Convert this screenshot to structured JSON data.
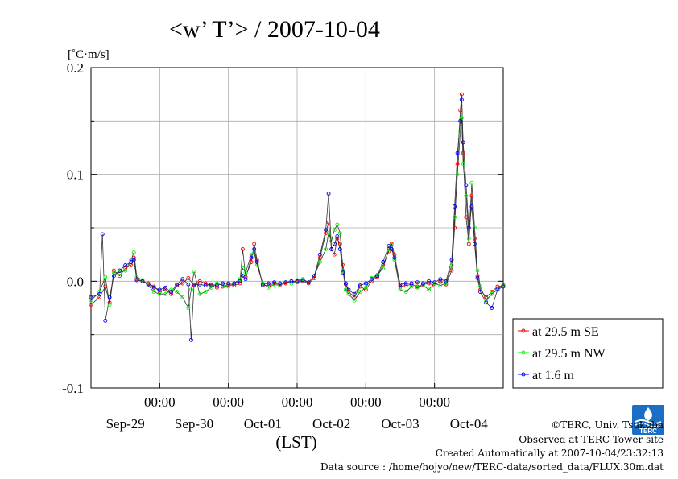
{
  "title": "<w’ T’> / 2007-10-04",
  "chart_data": {
    "type": "line",
    "title": "<w’ T’> / 2007-10-04",
    "ylabel": "[˚C·m/s]",
    "xlabel": "(LST)",
    "ylim": [
      -0.1,
      0.2
    ],
    "yticks": [
      -0.1,
      0.0,
      0.1,
      0.2
    ],
    "ytick_labels": [
      "-0.1",
      "0.0",
      "0.1",
      "0.2"
    ],
    "xlim_hours": [
      -12,
      132
    ],
    "xticks_hours": [
      12,
      36,
      60,
      84,
      108
    ],
    "xtick_labels": [
      "00:00",
      "00:00",
      "00:00",
      "00:00",
      "00:00"
    ],
    "day_labels": [
      {
        "label": "Sep-29",
        "center_hours": 0
      },
      {
        "label": "Sep-30",
        "center_hours": 24
      },
      {
        "label": "Oct-01",
        "center_hours": 48
      },
      {
        "label": "Oct-02",
        "center_hours": 72
      },
      {
        "label": "Oct-03",
        "center_hours": 96
      },
      {
        "label": "Oct-04",
        "center_hours": 120
      }
    ],
    "grid": true,
    "legend_position": "right",
    "series": [
      {
        "name": "at 29.5 m SE",
        "color": "#ff0000",
        "points": [
          [
            -12,
            -0.022
          ],
          [
            -9,
            -0.015
          ],
          [
            -7,
            -0.005
          ],
          [
            -5.5,
            -0.02
          ],
          [
            -4,
            0.01
          ],
          [
            -2,
            0.005
          ],
          [
            0,
            0.012
          ],
          [
            2,
            0.015
          ],
          [
            3,
            0.022
          ],
          [
            4,
            0.002
          ],
          [
            6,
            0.0
          ],
          [
            8,
            -0.002
          ],
          [
            10,
            -0.005
          ],
          [
            12,
            -0.01
          ],
          [
            14,
            -0.008
          ],
          [
            16,
            -0.012
          ],
          [
            18,
            -0.004
          ],
          [
            20,
            -0.002
          ],
          [
            22,
            0.003
          ],
          [
            24,
            -0.004
          ],
          [
            26,
            0.0
          ],
          [
            28,
            -0.002
          ],
          [
            30,
            -0.004
          ],
          [
            32,
            -0.006
          ],
          [
            34,
            -0.005
          ],
          [
            36,
            -0.003
          ],
          [
            38,
            -0.004
          ],
          [
            40,
            -0.002
          ],
          [
            41,
            0.03
          ],
          [
            42,
            0.004
          ],
          [
            44,
            0.018
          ],
          [
            45,
            0.035
          ],
          [
            46,
            0.02
          ],
          [
            48,
            -0.004
          ],
          [
            50,
            -0.004
          ],
          [
            52,
            -0.002
          ],
          [
            54,
            -0.003
          ],
          [
            56,
            -0.002
          ],
          [
            58,
            0.0
          ],
          [
            60,
            -0.001
          ],
          [
            62,
            0.0
          ],
          [
            64,
            -0.002
          ],
          [
            66,
            0.003
          ],
          [
            68,
            0.022
          ],
          [
            70,
            0.045
          ],
          [
            71,
            0.055
          ],
          [
            72,
            0.03
          ],
          [
            73,
            0.025
          ],
          [
            74,
            0.04
          ],
          [
            75,
            0.035
          ],
          [
            76,
            0.015
          ],
          [
            77,
            -0.003
          ],
          [
            78,
            -0.01
          ],
          [
            80,
            -0.015
          ],
          [
            82,
            -0.005
          ],
          [
            84,
            -0.008
          ],
          [
            86,
            0.0
          ],
          [
            88,
            0.004
          ],
          [
            90,
            0.015
          ],
          [
            92,
            0.028
          ],
          [
            93,
            0.035
          ],
          [
            94,
            0.025
          ],
          [
            96,
            -0.005
          ],
          [
            98,
            -0.004
          ],
          [
            100,
            -0.003
          ],
          [
            102,
            -0.005
          ],
          [
            104,
            -0.003
          ],
          [
            106,
            -0.002
          ],
          [
            108,
            -0.004
          ],
          [
            110,
            0.0
          ],
          [
            112,
            -0.003
          ],
          [
            114,
            0.01
          ],
          [
            115,
            0.05
          ],
          [
            116,
            0.11
          ],
          [
            117,
            0.16
          ],
          [
            117.5,
            0.175
          ],
          [
            118,
            0.12
          ],
          [
            119,
            0.06
          ],
          [
            120,
            0.035
          ],
          [
            121,
            0.08
          ],
          [
            122,
            0.04
          ],
          [
            123,
            0.005
          ],
          [
            124,
            -0.008
          ],
          [
            126,
            -0.015
          ],
          [
            128,
            -0.01
          ],
          [
            130,
            -0.005
          ],
          [
            132,
            -0.004
          ]
        ]
      },
      {
        "name": "at 29.5 m NW",
        "color": "#00ff00",
        "points": [
          [
            -12,
            -0.018
          ],
          [
            -9,
            -0.01
          ],
          [
            -7,
            0.004
          ],
          [
            -5.5,
            -0.022
          ],
          [
            -4,
            0.008
          ],
          [
            -2,
            0.008
          ],
          [
            0,
            0.01
          ],
          [
            2,
            0.02
          ],
          [
            3,
            0.027
          ],
          [
            4,
            0.004
          ],
          [
            6,
            0.001
          ],
          [
            8,
            -0.004
          ],
          [
            10,
            -0.01
          ],
          [
            12,
            -0.012
          ],
          [
            14,
            -0.012
          ],
          [
            16,
            -0.008
          ],
          [
            18,
            -0.01
          ],
          [
            20,
            -0.015
          ],
          [
            22,
            -0.025
          ],
          [
            23,
            -0.008
          ],
          [
            24,
            0.009
          ],
          [
            26,
            -0.012
          ],
          [
            28,
            -0.01
          ],
          [
            30,
            -0.006
          ],
          [
            32,
            -0.002
          ],
          [
            34,
            -0.004
          ],
          [
            36,
            -0.005
          ],
          [
            38,
            -0.002
          ],
          [
            40,
            0.002
          ],
          [
            41,
            0.012
          ],
          [
            42,
            0.008
          ],
          [
            44,
            0.025
          ],
          [
            45,
            0.027
          ],
          [
            46,
            0.015
          ],
          [
            48,
            -0.002
          ],
          [
            50,
            -0.006
          ],
          [
            52,
            -0.003
          ],
          [
            54,
            -0.004
          ],
          [
            56,
            -0.001
          ],
          [
            58,
            -0.002
          ],
          [
            60,
            0.001
          ],
          [
            62,
            0.002
          ],
          [
            64,
            -0.001
          ],
          [
            66,
            0.005
          ],
          [
            68,
            0.018
          ],
          [
            70,
            0.03
          ],
          [
            71,
            0.045
          ],
          [
            72,
            0.038
          ],
          [
            73,
            0.048
          ],
          [
            74,
            0.053
          ],
          [
            75,
            0.045
          ],
          [
            76,
            0.01
          ],
          [
            77,
            -0.008
          ],
          [
            78,
            -0.012
          ],
          [
            80,
            -0.018
          ],
          [
            82,
            -0.01
          ],
          [
            84,
            -0.006
          ],
          [
            86,
            0.003
          ],
          [
            88,
            0.006
          ],
          [
            90,
            0.012
          ],
          [
            92,
            0.03
          ],
          [
            93,
            0.034
          ],
          [
            94,
            0.02
          ],
          [
            96,
            -0.008
          ],
          [
            98,
            -0.01
          ],
          [
            100,
            -0.005
          ],
          [
            102,
            -0.006
          ],
          [
            104,
            -0.004
          ],
          [
            106,
            -0.008
          ],
          [
            108,
            -0.002
          ],
          [
            110,
            -0.004
          ],
          [
            112,
            -0.002
          ],
          [
            114,
            0.015
          ],
          [
            115,
            0.06
          ],
          [
            116,
            0.1
          ],
          [
            117,
            0.14
          ],
          [
            117.5,
            0.153
          ],
          [
            118,
            0.11
          ],
          [
            119,
            0.08
          ],
          [
            120,
            0.04
          ],
          [
            121,
            0.092
          ],
          [
            122,
            0.05
          ],
          [
            123,
            0.01
          ],
          [
            124,
            -0.005
          ],
          [
            126,
            -0.018
          ],
          [
            128,
            -0.012
          ],
          [
            130,
            -0.008
          ],
          [
            132,
            -0.003
          ]
        ]
      },
      {
        "name": "at 1.6 m",
        "color": "#0000ff",
        "points": [
          [
            -12,
            -0.015
          ],
          [
            -9,
            -0.012
          ],
          [
            -8,
            0.044
          ],
          [
            -7,
            -0.037
          ],
          [
            -5.5,
            -0.015
          ],
          [
            -4,
            0.005
          ],
          [
            -2,
            0.01
          ],
          [
            0,
            0.015
          ],
          [
            2,
            0.018
          ],
          [
            3,
            0.02
          ],
          [
            4,
            0.001
          ],
          [
            6,
            0.0
          ],
          [
            8,
            -0.003
          ],
          [
            10,
            -0.006
          ],
          [
            12,
            -0.008
          ],
          [
            14,
            -0.006
          ],
          [
            16,
            -0.01
          ],
          [
            18,
            -0.003
          ],
          [
            20,
            0.002
          ],
          [
            22,
            -0.003
          ],
          [
            23,
            -0.055
          ],
          [
            24,
            -0.003
          ],
          [
            26,
            -0.003
          ],
          [
            28,
            -0.004
          ],
          [
            30,
            -0.003
          ],
          [
            32,
            -0.004
          ],
          [
            34,
            -0.002
          ],
          [
            36,
            -0.002
          ],
          [
            38,
            -0.002
          ],
          [
            40,
            0.0
          ],
          [
            41,
            0.005
          ],
          [
            42,
            0.002
          ],
          [
            44,
            0.022
          ],
          [
            45,
            0.03
          ],
          [
            46,
            0.018
          ],
          [
            48,
            -0.003
          ],
          [
            50,
            -0.002
          ],
          [
            52,
            -0.001
          ],
          [
            54,
            -0.002
          ],
          [
            56,
            -0.001
          ],
          [
            58,
            0.0
          ],
          [
            60,
            0.0
          ],
          [
            62,
            0.001
          ],
          [
            64,
            -0.001
          ],
          [
            66,
            0.005
          ],
          [
            68,
            0.025
          ],
          [
            70,
            0.048
          ],
          [
            71,
            0.082
          ],
          [
            72,
            0.03
          ],
          [
            73,
            0.035
          ],
          [
            74,
            0.042
          ],
          [
            75,
            0.03
          ],
          [
            76,
            0.008
          ],
          [
            77,
            -0.002
          ],
          [
            78,
            -0.008
          ],
          [
            80,
            -0.012
          ],
          [
            82,
            -0.004
          ],
          [
            84,
            -0.002
          ],
          [
            86,
            0.002
          ],
          [
            88,
            0.005
          ],
          [
            90,
            0.018
          ],
          [
            92,
            0.033
          ],
          [
            93,
            0.03
          ],
          [
            94,
            0.022
          ],
          [
            96,
            -0.003
          ],
          [
            98,
            -0.002
          ],
          [
            100,
            -0.002
          ],
          [
            102,
            -0.001
          ],
          [
            104,
            -0.002
          ],
          [
            106,
            0.0
          ],
          [
            108,
            -0.001
          ],
          [
            110,
            0.002
          ],
          [
            112,
            0.0
          ],
          [
            114,
            0.02
          ],
          [
            115,
            0.07
          ],
          [
            116,
            0.12
          ],
          [
            117,
            0.15
          ],
          [
            117.5,
            0.17
          ],
          [
            118,
            0.13
          ],
          [
            119,
            0.09
          ],
          [
            120,
            0.05
          ],
          [
            121,
            0.07
          ],
          [
            122,
            0.035
          ],
          [
            123,
            0.003
          ],
          [
            124,
            -0.01
          ],
          [
            126,
            -0.02
          ],
          [
            128,
            -0.025
          ],
          [
            130,
            -0.008
          ],
          [
            132,
            -0.005
          ]
        ]
      }
    ]
  },
  "footer": {
    "copyright": "©TERC, Univ. Tsukuba",
    "observed": "Observed at TERC Tower site",
    "created": "Created Automatically at 2007-10-04/23:32:13",
    "source": "Data source : /home/hojyo/new/TERC-data/sorted_data/FLUX.30m.dat"
  },
  "logo": {
    "text": "TERC",
    "color": "#1a6fc4"
  }
}
